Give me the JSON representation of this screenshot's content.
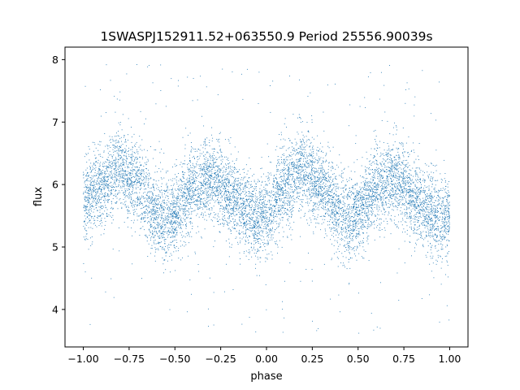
{
  "chart_data": {
    "type": "scatter",
    "title": "1SWASPJ152911.52+063550.9 Period 25556.90039s",
    "xlabel": "phase",
    "ylabel": "flux",
    "xlim": [
      -1.1,
      1.1
    ],
    "ylim": [
      3.4,
      8.2
    ],
    "xticks": [
      -1.0,
      -0.75,
      -0.5,
      -0.25,
      0.0,
      0.25,
      0.5,
      0.75,
      1.0
    ],
    "xtick_labels": [
      "−1.00",
      "−0.75",
      "−0.50",
      "−0.25",
      "0.00",
      "0.25",
      "0.50",
      "0.75",
      "1.00"
    ],
    "yticks": [
      4,
      5,
      6,
      7,
      8
    ],
    "ytick_labels": [
      "4",
      "5",
      "6",
      "7",
      "8"
    ],
    "grid": false,
    "series": [
      {
        "color": "#1f77b4",
        "x": [
          -1.0,
          -0.9,
          -0.8,
          -0.7,
          -0.6,
          -0.55,
          -0.5,
          -0.4,
          -0.3,
          -0.2,
          -0.1,
          -0.05,
          0.0,
          0.1,
          0.2,
          0.3,
          0.4,
          0.45,
          0.5,
          0.6,
          0.7,
          0.8,
          0.9,
          0.95,
          1.0
        ],
        "y": [
          5.7,
          6.0,
          6.25,
          6.0,
          5.55,
          5.45,
          5.55,
          5.95,
          6.1,
          5.85,
          5.55,
          5.45,
          5.5,
          5.95,
          6.25,
          6.0,
          5.55,
          5.45,
          5.55,
          5.95,
          6.1,
          5.85,
          5.55,
          5.45,
          5.5
        ],
        "scatter_sigma": 0.32,
        "outlier_range": [
          3.6,
          8.0
        ]
      }
    ]
  }
}
